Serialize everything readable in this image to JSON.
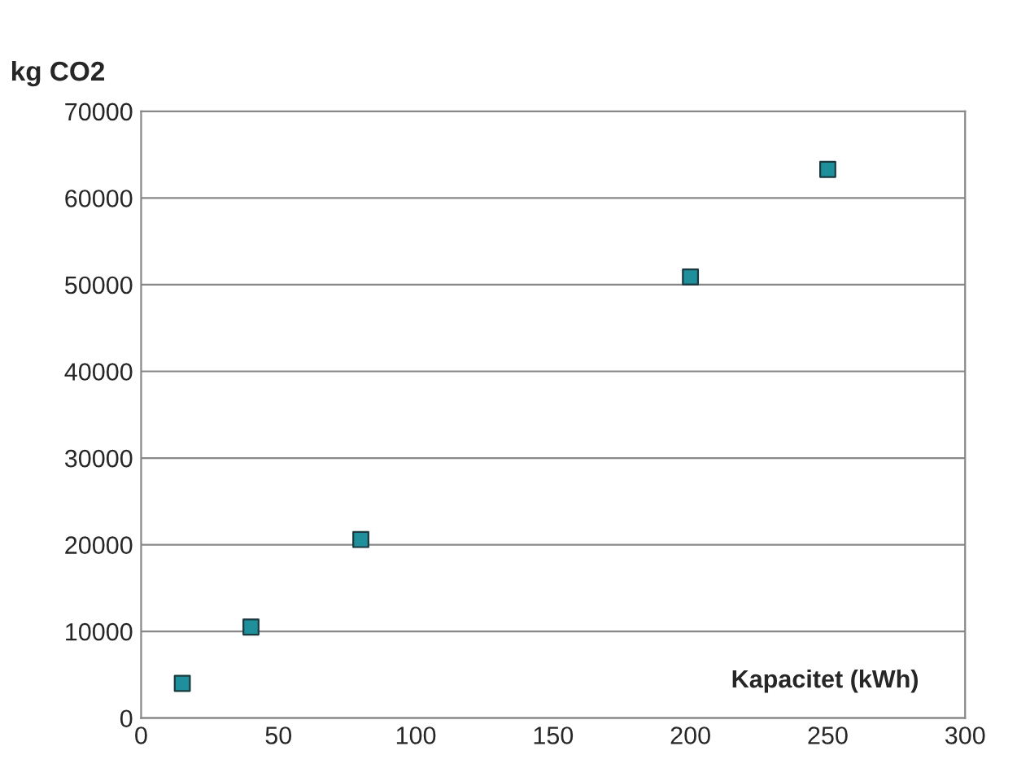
{
  "chart_data": {
    "type": "scatter",
    "ylabel": "kg CO2",
    "xlabel": "Kapacitet (kWh)",
    "x": [
      15,
      40,
      80,
      200,
      250
    ],
    "series": [
      {
        "color": "#1f8f9c",
        "values": [
          4000,
          10500,
          20600,
          50900,
          63300
        ]
      }
    ],
    "xlim": [
      0,
      300
    ],
    "xticks": [
      0,
      50,
      100,
      150,
      200,
      250,
      300
    ],
    "ylim": [
      0,
      70000
    ],
    "yticks": [
      0,
      10000,
      20000,
      30000,
      40000,
      50000,
      60000,
      70000
    ],
    "grid": "y",
    "marker": "square",
    "legend": false
  }
}
